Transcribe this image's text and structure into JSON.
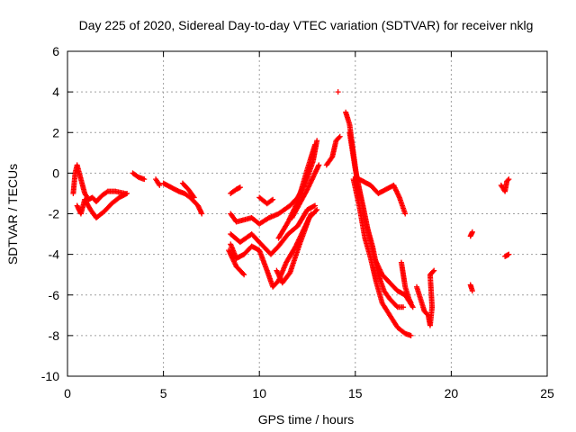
{
  "chart_data": {
    "type": "scatter",
    "title": "Day 225 of 2020, Sidereal Day-to-day VTEC variation (SDTVAR) for receiver nklg",
    "xlabel": "GPS time / hours",
    "ylabel": "SDTVAR / TECUs",
    "xlim": [
      0,
      25
    ],
    "ylim": [
      -10,
      6
    ],
    "xticks": [
      "0",
      "5",
      "10",
      "15",
      "20",
      "25"
    ],
    "yticks": [
      "-10",
      "-8",
      "-6",
      "-4",
      "-2",
      "0",
      "2",
      "4",
      "6"
    ],
    "grid": true,
    "marker": "+",
    "color": "#ff0000",
    "tracks": [
      [
        [
          0.3,
          -1.0
        ],
        [
          0.4,
          0.0
        ],
        [
          0.5,
          0.4
        ],
        [
          0.7,
          -0.3
        ],
        [
          0.9,
          -1.0
        ],
        [
          1.1,
          -1.3
        ],
        [
          1.3,
          -1.2
        ],
        [
          1.5,
          -1.4
        ],
        [
          1.8,
          -1.1
        ],
        [
          2.1,
          -0.9
        ],
        [
          2.5,
          -0.9
        ],
        [
          3.0,
          -1.0
        ]
      ],
      [
        [
          0.5,
          -1.6
        ],
        [
          0.7,
          -2.0
        ],
        [
          0.9,
          -1.3
        ],
        [
          1.2,
          -1.8
        ],
        [
          1.5,
          -2.2
        ],
        [
          1.9,
          -1.9
        ],
        [
          2.3,
          -1.5
        ],
        [
          2.7,
          -1.2
        ],
        [
          3.1,
          -1.0
        ]
      ],
      [
        [
          3.4,
          0.0
        ],
        [
          3.7,
          -0.2
        ],
        [
          4.0,
          -0.3
        ]
      ],
      [
        [
          4.6,
          -0.3
        ],
        [
          4.8,
          -0.6
        ]
      ],
      [
        [
          5.0,
          -0.5
        ],
        [
          5.4,
          -0.7
        ],
        [
          5.8,
          -0.9
        ],
        [
          6.1,
          -1.0
        ],
        [
          6.4,
          -1.2
        ],
        [
          6.8,
          -1.6
        ],
        [
          7.0,
          -2.0
        ]
      ],
      [
        [
          6.0,
          -0.5
        ],
        [
          6.3,
          -0.8
        ],
        [
          6.6,
          -1.2
        ]
      ],
      [
        [
          8.5,
          -1.0
        ],
        [
          8.8,
          -0.8
        ],
        [
          9.0,
          -0.7
        ]
      ],
      [
        [
          8.5,
          -2.0
        ],
        [
          8.8,
          -2.4
        ],
        [
          9.2,
          -2.3
        ],
        [
          9.6,
          -2.2
        ],
        [
          10.0,
          -2.5
        ],
        [
          10.5,
          -2.2
        ],
        [
          11.0,
          -2.0
        ],
        [
          11.6,
          -1.6
        ],
        [
          12.0,
          -1.2
        ],
        [
          12.4,
          -0.5
        ],
        [
          12.8,
          0.6
        ],
        [
          13.0,
          1.6
        ]
      ],
      [
        [
          8.5,
          -3.0
        ],
        [
          9.0,
          -3.4
        ],
        [
          9.6,
          -3.0
        ],
        [
          10.2,
          -3.6
        ],
        [
          10.6,
          -4.0
        ],
        [
          11.0,
          -3.6
        ],
        [
          11.5,
          -3.0
        ],
        [
          12.0,
          -2.6
        ],
        [
          12.5,
          -1.8
        ],
        [
          12.9,
          -1.6
        ]
      ],
      [
        [
          8.5,
          -3.5
        ],
        [
          8.8,
          -4.2
        ],
        [
          9.2,
          -4.0
        ],
        [
          9.6,
          -3.6
        ],
        [
          10.0,
          -3.8
        ],
        [
          10.4,
          -4.8
        ],
        [
          10.7,
          -5.6
        ],
        [
          11.0,
          -5.3
        ],
        [
          11.4,
          -4.4
        ],
        [
          11.9,
          -3.6
        ],
        [
          12.3,
          -2.8
        ],
        [
          12.7,
          -2.0
        ]
      ],
      [
        [
          8.4,
          -3.8
        ],
        [
          8.8,
          -4.6
        ],
        [
          9.2,
          -5.0
        ]
      ],
      [
        [
          10.9,
          -4.8
        ],
        [
          11.2,
          -5.4
        ],
        [
          11.6,
          -4.9
        ],
        [
          12.1,
          -3.5
        ],
        [
          12.6,
          -2.2
        ],
        [
          13.0,
          -1.8
        ]
      ],
      [
        [
          11.7,
          -2.2
        ],
        [
          12.1,
          -1.5
        ],
        [
          12.5,
          -0.8
        ],
        [
          12.9,
          0.0
        ],
        [
          13.1,
          0.4
        ]
      ],
      [
        [
          11.0,
          -3.2
        ],
        [
          11.5,
          -2.4
        ],
        [
          12.0,
          -1.4
        ],
        [
          12.5,
          0.2
        ],
        [
          12.9,
          1.4
        ]
      ],
      [
        [
          10.0,
          -1.2
        ],
        [
          10.4,
          -1.5
        ],
        [
          10.7,
          -1.3
        ]
      ],
      [
        [
          13.5,
          0.4
        ],
        [
          13.8,
          0.8
        ],
        [
          14.0,
          1.6
        ],
        [
          14.2,
          1.8
        ]
      ],
      [
        [
          14.1,
          4.0
        ]
      ],
      [
        [
          14.5,
          3.0
        ],
        [
          14.7,
          2.4
        ],
        [
          14.9,
          1.0
        ],
        [
          15.1,
          -0.4
        ],
        [
          15.4,
          -1.6
        ],
        [
          15.7,
          -3.0
        ],
        [
          16.0,
          -4.2
        ],
        [
          16.4,
          -5.0
        ],
        [
          16.8,
          -5.4
        ],
        [
          17.2,
          -5.8
        ],
        [
          17.6,
          -6.0
        ],
        [
          18.0,
          -6.6
        ]
      ],
      [
        [
          14.7,
          2.0
        ],
        [
          15.0,
          0.2
        ],
        [
          15.3,
          -1.2
        ],
        [
          15.6,
          -2.6
        ],
        [
          15.9,
          -3.6
        ],
        [
          16.2,
          -5.0
        ],
        [
          16.5,
          -5.8
        ],
        [
          16.8,
          -6.2
        ],
        [
          17.2,
          -6.6
        ],
        [
          17.5,
          -6.6
        ]
      ],
      [
        [
          14.9,
          -0.3
        ],
        [
          15.2,
          -1.6
        ],
        [
          15.5,
          -3.2
        ],
        [
          15.8,
          -4.2
        ],
        [
          16.1,
          -5.4
        ],
        [
          16.4,
          -6.4
        ],
        [
          16.8,
          -7.0
        ],
        [
          17.2,
          -7.6
        ],
        [
          17.6,
          -7.9
        ],
        [
          17.9,
          -8.0
        ]
      ],
      [
        [
          15.0,
          -0.2
        ],
        [
          15.4,
          -0.4
        ],
        [
          15.8,
          -0.6
        ],
        [
          16.2,
          -1.0
        ],
        [
          16.6,
          -0.8
        ],
        [
          17.0,
          -0.6
        ],
        [
          17.3,
          -1.2
        ],
        [
          17.6,
          -2.0
        ]
      ],
      [
        [
          17.4,
          -4.4
        ],
        [
          17.6,
          -5.6
        ],
        [
          17.8,
          -6.2
        ],
        [
          17.9,
          -6.4
        ]
      ],
      [
        [
          18.2,
          -5.6
        ],
        [
          18.4,
          -6.2
        ],
        [
          18.6,
          -6.8
        ],
        [
          18.8,
          -7.0
        ],
        [
          18.9,
          -7.5
        ],
        [
          19.0,
          -6.6
        ],
        [
          18.9,
          -5.0
        ],
        [
          19.1,
          -4.8
        ]
      ],
      [
        [
          21.0,
          -3.1
        ],
        [
          21.1,
          -2.9
        ]
      ],
      [
        [
          21.0,
          -5.5
        ],
        [
          21.1,
          -5.8
        ]
      ],
      [
        [
          22.6,
          -0.6
        ],
        [
          22.8,
          -0.9
        ],
        [
          22.9,
          -0.4
        ],
        [
          23.0,
          -0.3
        ]
      ],
      [
        [
          22.8,
          -4.1
        ],
        [
          23.0,
          -4.0
        ]
      ]
    ]
  }
}
